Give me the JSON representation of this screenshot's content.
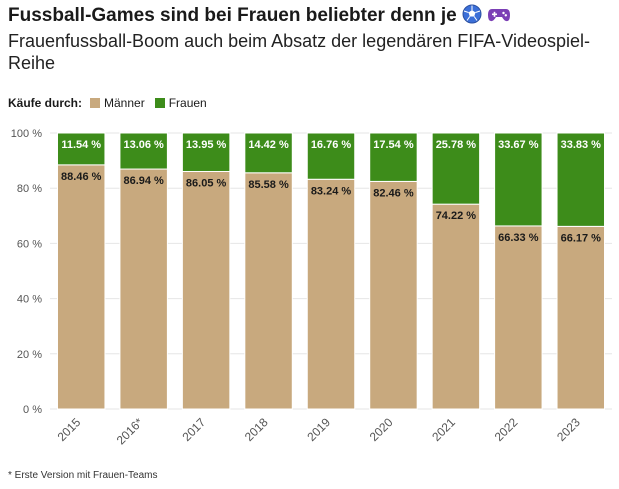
{
  "title": "Fussball-Games sind bei Frauen beliebter denn je",
  "subtitle": "Frauenfussball-Boom auch beim Absatz der legendären FIFA-Videospiel-Reihe",
  "legend_label": "Käufe durch:",
  "footnote": "* Erste Version mit Frauen-Teams",
  "icons": [
    "soccer-ball-icon",
    "gamepad-icon"
  ],
  "chart_data": {
    "type": "bar",
    "stacked": true,
    "categories": [
      "2015",
      "2016*",
      "2017",
      "2018",
      "2019",
      "2020",
      "2021",
      "2022",
      "2023"
    ],
    "series": [
      {
        "name": "Männer",
        "color": "#c8a97e",
        "values": [
          88.46,
          86.94,
          86.05,
          85.58,
          83.24,
          82.46,
          74.22,
          66.33,
          66.17
        ]
      },
      {
        "name": "Frauen",
        "color": "#3d8c1a",
        "values": [
          11.54,
          13.06,
          13.95,
          14.42,
          16.76,
          17.54,
          25.78,
          33.67,
          33.83
        ]
      }
    ],
    "ylim": [
      0,
      100
    ],
    "yticks": [
      0,
      20,
      40,
      60,
      80,
      100
    ],
    "ytick_labels": [
      "0 %",
      "20 %",
      "40 %",
      "60 %",
      "80 %",
      "100 %"
    ],
    "value_suffix": " %",
    "grid": true,
    "legend": "top-left"
  }
}
